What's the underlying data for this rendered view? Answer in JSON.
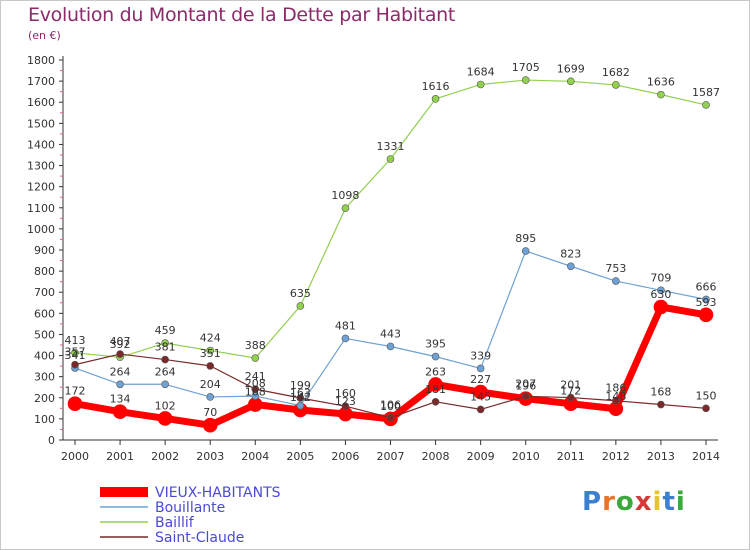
{
  "title": "Evolution du Montant de la Dette par Habitant",
  "subtitle": "(en €)",
  "logo": {
    "letters": [
      "P",
      "r",
      "o",
      "x",
      "i",
      "t",
      "i"
    ],
    "colors": [
      "#3a7fd0",
      "#e8742a",
      "#3aa83a",
      "#d43a3a",
      "#e8c42a",
      "#3a7fd0",
      "#3aa83a"
    ]
  },
  "chart_data": {
    "type": "line",
    "title": "Evolution du Montant de la Dette par Habitant",
    "ylabel": "(en €)",
    "xlabel": "",
    "ylim": [
      0,
      1800
    ],
    "yticks": [
      0,
      100,
      200,
      300,
      400,
      500,
      600,
      700,
      800,
      900,
      1000,
      1100,
      1200,
      1300,
      1400,
      1500,
      1600,
      1700,
      1800
    ],
    "x": [
      "2000",
      "2001",
      "2002",
      "2003",
      "2004",
      "2005",
      "2006",
      "2007",
      "2008",
      "2009",
      "2010",
      "2011",
      "2012",
      "2013",
      "2014"
    ],
    "grid": false,
    "legend_position": "bottom-left",
    "series": [
      {
        "name": "VIEUX-HABITANTS",
        "color": "#ff0000",
        "width": 7,
        "marker": 7,
        "values": [
          172,
          134,
          102,
          70,
          168,
          142,
          123,
          100,
          263,
          227,
          196,
          172,
          148,
          630,
          593
        ]
      },
      {
        "name": "Bouillante",
        "color": "#6ea2d4",
        "width": 1.2,
        "marker": 3.5,
        "values": [
          341,
          264,
          264,
          204,
          208,
          163,
          481,
          443,
          395,
          339,
          895,
          823,
          753,
          709,
          666
        ]
      },
      {
        "name": "Baillif",
        "color": "#92d050",
        "width": 1.2,
        "marker": 3.5,
        "values": [
          413,
          392,
          459,
          424,
          388,
          635,
          1098,
          1331,
          1616,
          1684,
          1705,
          1699,
          1682,
          1636,
          1587
        ]
      },
      {
        "name": "Saint-Claude",
        "color": "#7a2a2a",
        "width": 1.2,
        "marker": 3.5,
        "values": [
          357,
          407,
          381,
          351,
          241,
          199,
          160,
          106,
          181,
          145,
          207,
          201,
          186,
          168,
          150
        ]
      }
    ]
  }
}
